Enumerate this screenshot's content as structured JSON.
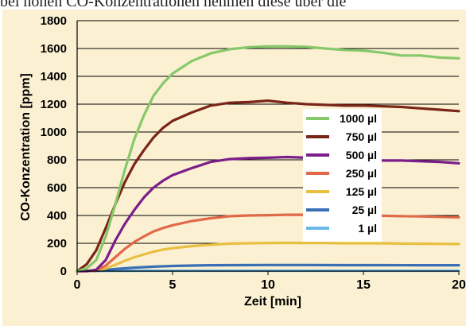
{
  "header_text": "bei hohen CO-Konzentrationen nehmen diese über die",
  "chart_data": {
    "type": "line",
    "xlabel": "Zeit [min]",
    "ylabel": "CO-Konzentration [ppm]",
    "xlim": [
      0,
      20
    ],
    "ylim": [
      0,
      1800
    ],
    "x_ticks": [
      "0",
      "5",
      "10",
      "15",
      "20"
    ],
    "y_ticks": [
      "0",
      "200",
      "400",
      "600",
      "800",
      "1000",
      "1200",
      "1400",
      "1600",
      "1800"
    ],
    "grid": "horizontal",
    "legend_placement": "center-right",
    "series": [
      {
        "name": "1000 µl",
        "color": "#86c86a",
        "points": [
          [
            0,
            0
          ],
          [
            0.5,
            20
          ],
          [
            1,
            80
          ],
          [
            1.5,
            250
          ],
          [
            2,
            480
          ],
          [
            2.5,
            730
          ],
          [
            3,
            950
          ],
          [
            3.5,
            1120
          ],
          [
            4,
            1260
          ],
          [
            4.5,
            1350
          ],
          [
            5,
            1420
          ],
          [
            6,
            1510
          ],
          [
            7,
            1565
          ],
          [
            8,
            1595
          ],
          [
            9,
            1610
          ],
          [
            10,
            1615
          ],
          [
            11,
            1615
          ],
          [
            12,
            1612
          ],
          [
            13,
            1600
          ],
          [
            14,
            1590
          ],
          [
            15,
            1585
          ],
          [
            16,
            1570
          ],
          [
            17,
            1550
          ],
          [
            18,
            1550
          ],
          [
            19,
            1535
          ],
          [
            20,
            1530
          ]
        ]
      },
      {
        "name": "750 µl",
        "color": "#7a2518",
        "points": [
          [
            0,
            0
          ],
          [
            0.5,
            50
          ],
          [
            1,
            150
          ],
          [
            1.5,
            310
          ],
          [
            2,
            480
          ],
          [
            2.5,
            640
          ],
          [
            3,
            770
          ],
          [
            3.5,
            870
          ],
          [
            4,
            960
          ],
          [
            4.5,
            1030
          ],
          [
            5,
            1080
          ],
          [
            6,
            1140
          ],
          [
            7,
            1190
          ],
          [
            8,
            1210
          ],
          [
            9,
            1215
          ],
          [
            10,
            1225
          ],
          [
            11,
            1210
          ],
          [
            12,
            1200
          ],
          [
            13,
            1195
          ],
          [
            14,
            1190
          ],
          [
            15,
            1190
          ],
          [
            16,
            1185
          ],
          [
            17,
            1180
          ],
          [
            18,
            1170
          ],
          [
            19,
            1160
          ],
          [
            20,
            1150
          ]
        ]
      },
      {
        "name": "500 µl",
        "color": "#7b1e8a",
        "points": [
          [
            0,
            0
          ],
          [
            0.5,
            0
          ],
          [
            1,
            10
          ],
          [
            1.5,
            80
          ],
          [
            2,
            220
          ],
          [
            2.5,
            340
          ],
          [
            3,
            440
          ],
          [
            3.5,
            530
          ],
          [
            4,
            600
          ],
          [
            4.5,
            650
          ],
          [
            5,
            690
          ],
          [
            6,
            740
          ],
          [
            7,
            785
          ],
          [
            8,
            805
          ],
          [
            9,
            812
          ],
          [
            10,
            815
          ],
          [
            11,
            820
          ],
          [
            12,
            815
          ],
          [
            13,
            810
          ],
          [
            14,
            805
          ],
          [
            15,
            800
          ],
          [
            16,
            795
          ],
          [
            17,
            795
          ],
          [
            18,
            790
          ],
          [
            19,
            785
          ],
          [
            20,
            775
          ]
        ]
      },
      {
        "name": "250 µl",
        "color": "#e0694a",
        "points": [
          [
            0,
            0
          ],
          [
            0.5,
            0
          ],
          [
            1,
            5
          ],
          [
            1.5,
            40
          ],
          [
            2,
            100
          ],
          [
            2.5,
            160
          ],
          [
            3,
            210
          ],
          [
            3.5,
            250
          ],
          [
            4,
            285
          ],
          [
            4.5,
            310
          ],
          [
            5,
            330
          ],
          [
            6,
            360
          ],
          [
            7,
            380
          ],
          [
            8,
            395
          ],
          [
            9,
            400
          ],
          [
            10,
            402
          ],
          [
            11,
            405
          ],
          [
            12,
            405
          ],
          [
            13,
            402
          ],
          [
            14,
            400
          ],
          [
            15,
            400
          ],
          [
            16,
            398
          ],
          [
            17,
            395
          ],
          [
            18,
            393
          ],
          [
            19,
            390
          ],
          [
            20,
            387
          ]
        ]
      },
      {
        "name": "125 µl",
        "color": "#e8bf40",
        "points": [
          [
            0,
            0
          ],
          [
            0.5,
            0
          ],
          [
            1,
            5
          ],
          [
            1.5,
            20
          ],
          [
            2,
            45
          ],
          [
            2.5,
            75
          ],
          [
            3,
            100
          ],
          [
            3.5,
            120
          ],
          [
            4,
            140
          ],
          [
            4.5,
            155
          ],
          [
            5,
            165
          ],
          [
            6,
            180
          ],
          [
            7,
            190
          ],
          [
            8,
            198
          ],
          [
            9,
            200
          ],
          [
            10,
            202
          ],
          [
            11,
            203
          ],
          [
            12,
            202
          ],
          [
            13,
            202
          ],
          [
            14,
            200
          ],
          [
            15,
            200
          ],
          [
            16,
            200
          ],
          [
            17,
            198
          ],
          [
            18,
            197
          ],
          [
            19,
            196
          ],
          [
            20,
            195
          ]
        ]
      },
      {
        "name": "25 µl",
        "color": "#3a6fb5",
        "points": [
          [
            0,
            0
          ],
          [
            1,
            2
          ],
          [
            1.5,
            8
          ],
          [
            2,
            15
          ],
          [
            3,
            25
          ],
          [
            4,
            32
          ],
          [
            5,
            37
          ],
          [
            6,
            40
          ],
          [
            7,
            42
          ],
          [
            8,
            43
          ],
          [
            10,
            44
          ],
          [
            12,
            44
          ],
          [
            14,
            43
          ],
          [
            16,
            43
          ],
          [
            18,
            42
          ],
          [
            20,
            42
          ]
        ]
      },
      {
        "name": "1 µl",
        "color": "#6ab8e6",
        "points": [
          [
            0,
            0
          ],
          [
            1,
            1
          ],
          [
            2,
            2
          ],
          [
            4,
            3
          ],
          [
            6,
            3
          ],
          [
            10,
            3
          ],
          [
            14,
            3
          ],
          [
            18,
            3
          ],
          [
            20,
            3
          ]
        ]
      }
    ]
  }
}
